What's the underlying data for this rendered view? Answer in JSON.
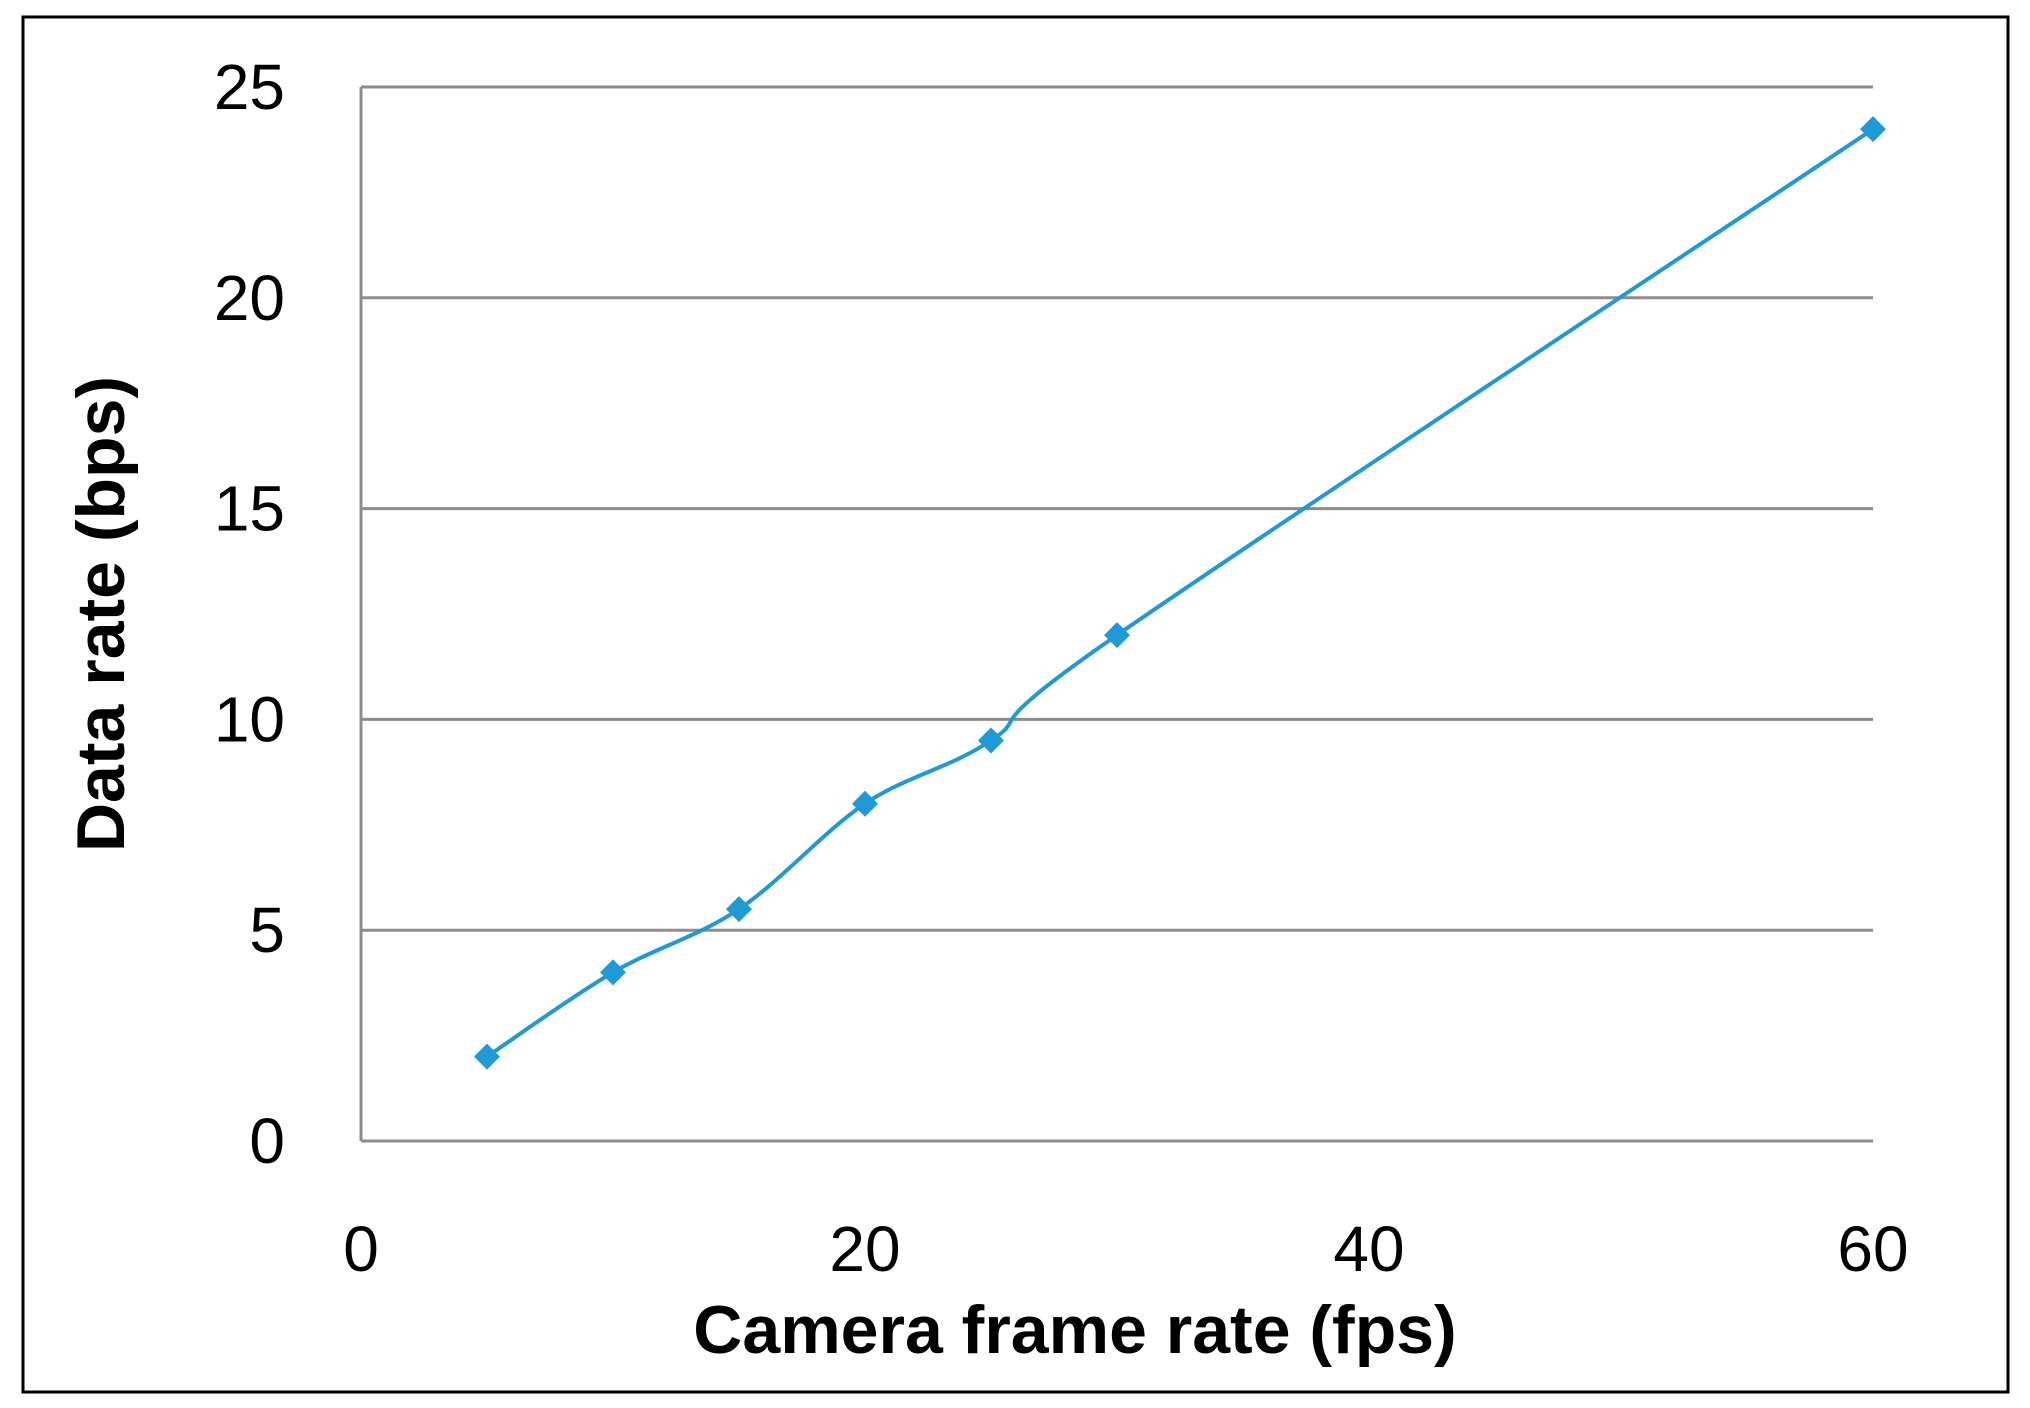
{
  "chart_data": {
    "type": "line",
    "xlabel": "Camera frame rate (fps)",
    "ylabel": "Data rate (bps)",
    "xlim": [
      0,
      60
    ],
    "ylim": [
      0,
      25
    ],
    "x_ticks": [
      "0",
      "20",
      "40",
      "60"
    ],
    "y_ticks": [
      "0",
      "5",
      "10",
      "15",
      "20",
      "25"
    ],
    "x_tick_values": [
      0,
      20,
      40,
      60
    ],
    "y_tick_values": [
      0,
      5,
      10,
      15,
      20,
      25
    ],
    "grid": "horizontal",
    "legend": "none",
    "smoothed": true,
    "marker": "diamond",
    "series": [
      {
        "color": "#1f9ad6",
        "x": [
          5,
          10,
          15,
          20,
          25,
          30,
          60
        ],
        "y": [
          2,
          4,
          5.5,
          8,
          9.5,
          12,
          24
        ]
      }
    ]
  }
}
